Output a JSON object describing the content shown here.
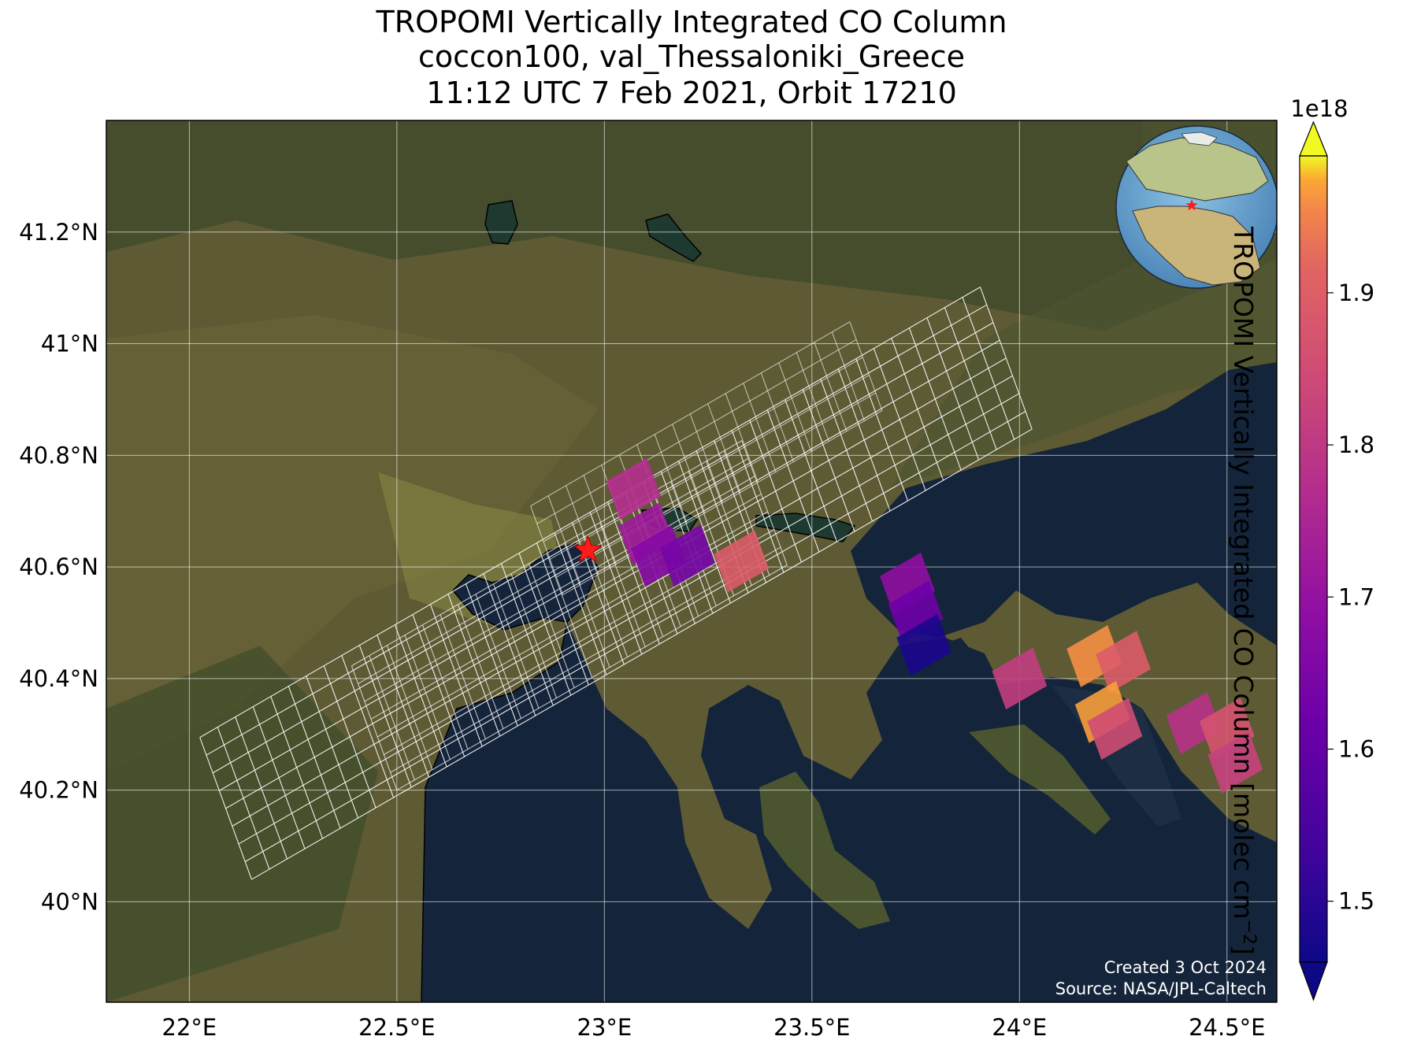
{
  "title": {
    "line1": "TROPOMI Vertically Integrated CO Column",
    "line2": "coccon100, val_Thessaloniki_Greece",
    "line3": "11:12 UTC 7 Feb 2021, Orbit 17210"
  },
  "map": {
    "lon_range": [
      21.8,
      24.62
    ],
    "lat_range": [
      39.82,
      41.4
    ],
    "lon_ticks": [
      22.0,
      22.5,
      23.0,
      23.5,
      24.0,
      24.5
    ],
    "lon_tick_labels": [
      "22°E",
      "22.5°E",
      "23°E",
      "23.5°E",
      "24°E",
      "24.5°E"
    ],
    "lat_ticks": [
      40.0,
      40.2,
      40.4,
      40.6,
      40.8,
      41.0,
      41.2
    ],
    "lat_tick_labels": [
      "40°N",
      "40.2°N",
      "40.4°N",
      "40.6°N",
      "40.8°N",
      "41°N",
      "41.2°N"
    ],
    "gridlines": true,
    "site_marker": {
      "name": "val_Thessaloniki_Greece",
      "lon": 22.96,
      "lat": 40.63,
      "symbol": "red-star-icon"
    },
    "credits": {
      "created": "Created 3 Oct 2024",
      "source": "Source: NASA/JPL-Caltech"
    },
    "inset_globe": {
      "marker": "red-star-icon"
    }
  },
  "colorbar": {
    "colormap": "plasma",
    "range": [
      1.46,
      1.99
    ],
    "ticks": [
      1.5,
      1.6,
      1.7,
      1.8,
      1.9
    ],
    "tick_labels": [
      "1.5",
      "1.6",
      "1.7",
      "1.8",
      "1.9"
    ],
    "exponent_label": "1e18",
    "label_main": "TROPOMI Vertically Integrated CO Column [molec cm",
    "label_sup": "−2",
    "label_end": "]",
    "extend": "both"
  },
  "chart_data": {
    "type": "heatmap",
    "units": "molec cm^-2 (×1e18)",
    "pixels": [
      {
        "lon": 23.07,
        "lat": 40.74,
        "value": 1.77
      },
      {
        "lon": 23.1,
        "lat": 40.66,
        "value": 1.72
      },
      {
        "lon": 23.13,
        "lat": 40.62,
        "value": 1.67
      },
      {
        "lon": 23.2,
        "lat": 40.62,
        "value": 1.64
      },
      {
        "lon": 23.33,
        "lat": 40.61,
        "value": 1.89
      },
      {
        "lon": 23.73,
        "lat": 40.57,
        "value": 1.69
      },
      {
        "lon": 23.75,
        "lat": 40.52,
        "value": 1.62
      },
      {
        "lon": 23.77,
        "lat": 40.46,
        "value": 1.48
      },
      {
        "lon": 24.0,
        "lat": 40.4,
        "value": 1.81
      },
      {
        "lon": 24.18,
        "lat": 40.44,
        "value": 1.96
      },
      {
        "lon": 24.25,
        "lat": 40.43,
        "value": 1.89
      },
      {
        "lon": 24.2,
        "lat": 40.34,
        "value": 1.97
      },
      {
        "lon": 24.23,
        "lat": 40.31,
        "value": 1.85
      },
      {
        "lon": 24.42,
        "lat": 40.32,
        "value": 1.78
      },
      {
        "lon": 24.5,
        "lat": 40.31,
        "value": 1.87
      },
      {
        "lon": 24.52,
        "lat": 40.25,
        "value": 1.82
      }
    ]
  }
}
